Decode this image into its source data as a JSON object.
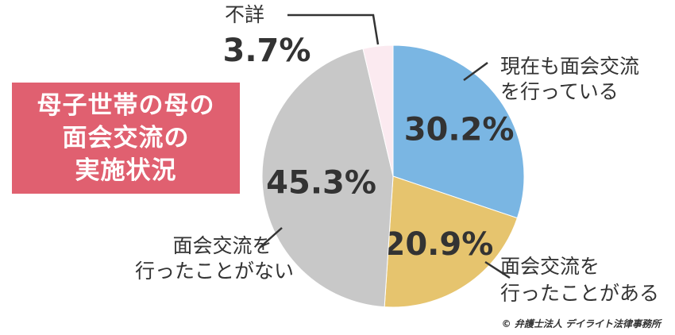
{
  "title_lines": [
    "母子世帯の母の",
    "面会交流の",
    "実施状況"
  ],
  "copyright": "© 弁護士法人 デイライト法律事務所",
  "chart_data": {
    "type": "pie",
    "title": "母子世帯の母の面会交流の実施状況",
    "slices": [
      {
        "label_lines": [
          "現在も面会交流",
          "を行っている"
        ],
        "value": 30.2,
        "value_text": "30.2%",
        "color": "#7ab6e3"
      },
      {
        "label_lines": [
          "面会交流を",
          "行ったことがある"
        ],
        "value": 20.9,
        "value_text": "20.9%",
        "color": "#e6c46e"
      },
      {
        "label_lines": [
          "面会交流を",
          "行ったことがない"
        ],
        "value": 45.3,
        "value_text": "45.3%",
        "color": "#c8c8c8"
      },
      {
        "label_lines": [
          "不詳"
        ],
        "value": 3.7,
        "value_text": "3.7%",
        "color": "#fbeaf0"
      }
    ]
  }
}
